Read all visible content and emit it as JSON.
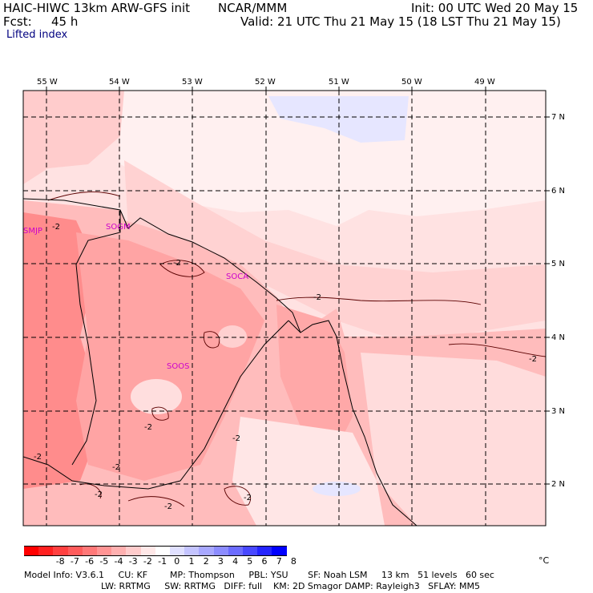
{
  "header": {
    "model": "HAIC-HIWC 13km ARW-GFS init",
    "org": "NCAR/MMM",
    "init": "Init: 00 UTC Wed 20 May 15",
    "fcst_label": "Fcst:",
    "fcst_value": "45 h",
    "valid": "Valid: 21 UTC Thu 21 May 15 (18 LST Thu 21 May 15)",
    "field": "Lifted index"
  },
  "map": {
    "lon_labels": [
      "55 W",
      "54 W",
      "53 W",
      "52 W",
      "51 W",
      "50 W",
      "49 W"
    ],
    "lat_labels": [
      "7 N",
      "6 N",
      "5 N",
      "4 N",
      "3 N",
      "2 N"
    ],
    "stations": [
      "SMJP",
      "SOGM",
      "SOCA",
      "SOOS"
    ],
    "contour_labels": [
      "-2",
      "-2",
      "-2",
      "-2",
      "-2",
      "-2",
      "-2",
      "-2",
      "-2",
      "-2",
      "-2"
    ]
  },
  "colorbar": {
    "unit": "°C",
    "ticks": [
      "-8",
      "-7",
      "-6",
      "-5",
      "-4",
      "-3",
      "-2",
      "-1",
      "0",
      "1",
      "2",
      "3",
      "4",
      "5",
      "6",
      "7",
      "8"
    ],
    "colors": [
      "#ff0000",
      "#ff2020",
      "#ff4040",
      "#ff5c5c",
      "#ff7878",
      "#ff9494",
      "#ffb0b0",
      "#ffcccc",
      "#ffe8e8",
      "#ffffff",
      "#e0e0ff",
      "#c4c4ff",
      "#a8a8ff",
      "#8c8cff",
      "#6c6cff",
      "#4848ff",
      "#2424ff",
      "#0000ff"
    ]
  },
  "footer": {
    "line1": "Model Info: V3.6.1     CU: KF        MP: Thompson     PBL: YSU       SF: Noah LSM     13 km   51 levels   60 sec",
    "line2": "LW: RRTMG     SW: RRTMG   DIFF: full    KM: 2D Smagor DAMP: Rayleigh3   SFLAY: MM5"
  }
}
